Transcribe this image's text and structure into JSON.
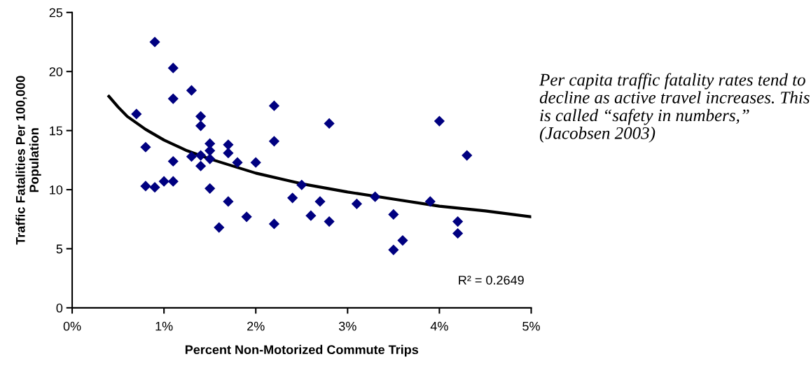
{
  "chart_data": {
    "type": "scatter",
    "xlabel": "Percent Non-Motorized Commute Trips",
    "ylabel": "Traffic Fatalities Per 100,000\nPopulation",
    "xlim": [
      0,
      5
    ],
    "ylim": [
      0,
      25
    ],
    "xticks": [
      {
        "value": 0,
        "label": "0%"
      },
      {
        "value": 1,
        "label": "1%"
      },
      {
        "value": 2,
        "label": "2%"
      },
      {
        "value": 3,
        "label": "3%"
      },
      {
        "value": 4,
        "label": "4%"
      },
      {
        "value": 5,
        "label": "5%"
      }
    ],
    "yticks": [
      0,
      5,
      10,
      15,
      20,
      25
    ],
    "grid": false,
    "legend": false,
    "marker": "diamond",
    "series": [
      {
        "color": "#000080",
        "x": [
          0.7,
          0.8,
          0.8,
          0.9,
          0.9,
          1.0,
          1.1,
          1.1,
          1.1,
          1.1,
          1.3,
          1.3,
          1.4,
          1.4,
          1.4,
          1.4,
          1.5,
          1.5,
          1.5,
          1.5,
          1.6,
          1.7,
          1.7,
          1.7,
          1.8,
          1.9,
          2.0,
          2.2,
          2.2,
          2.2,
          2.4,
          2.5,
          2.6,
          2.7,
          2.8,
          2.8,
          3.1,
          3.3,
          3.5,
          3.5,
          3.6,
          3.9,
          4.0,
          4.2,
          4.2,
          4.3
        ],
        "values": [
          16.4,
          13.6,
          10.3,
          22.5,
          10.2,
          10.7,
          10.7,
          12.4,
          17.7,
          20.3,
          18.4,
          12.8,
          16.2,
          15.4,
          12.9,
          12.0,
          13.9,
          13.3,
          12.6,
          10.1,
          6.8,
          13.8,
          13.1,
          9.0,
          12.3,
          7.7,
          12.3,
          17.1,
          14.1,
          7.1,
          9.3,
          10.4,
          7.8,
          9.0,
          15.6,
          7.3,
          8.8,
          9.4,
          7.9,
          4.9,
          5.7,
          9.0,
          15.8,
          7.3,
          6.3,
          12.9
        ]
      },
      {
        "type": "line",
        "color": "#000000",
        "marker": "none",
        "line_style": "solid",
        "x": [
          0.4,
          0.5,
          0.6,
          0.8,
          1.0,
          1.25,
          1.5,
          2.0,
          2.5,
          3.0,
          3.5,
          4.0,
          4.5,
          5.0
        ],
        "values": [
          17.9,
          17.0,
          16.2,
          15.1,
          14.2,
          13.3,
          12.6,
          11.4,
          10.5,
          9.8,
          9.2,
          8.6,
          8.2,
          7.7
        ]
      }
    ],
    "annotations": [
      "R² = 0.2649",
      "Per capita traffic fatality rates tend to decline as active travel increases. This is called “safety in numbers,” (Jacobsen 2003)"
    ]
  }
}
